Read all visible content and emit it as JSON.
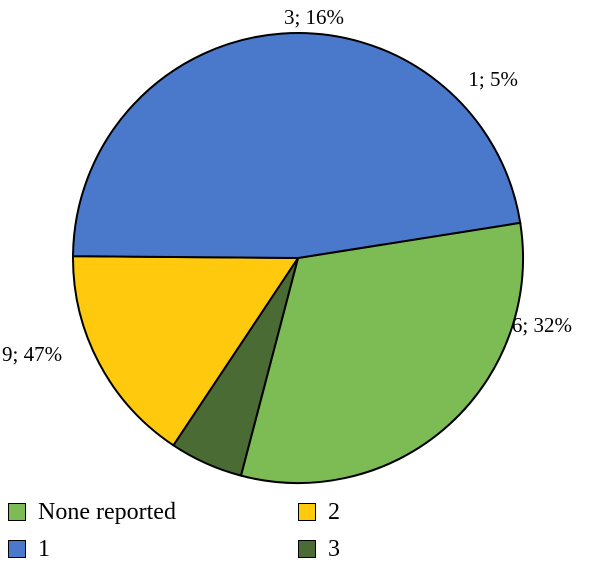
{
  "chart_data": {
    "type": "pie",
    "categories": [
      "None reported",
      "3",
      "2",
      "1"
    ],
    "values": [
      6,
      1,
      3,
      9
    ],
    "percent": [
      32,
      5,
      16,
      47
    ],
    "data_labels": [
      "6; 32%",
      "1; 5%",
      "3; 16%",
      "9; 47%"
    ],
    "colors": [
      "#7dbb55",
      "#4a6b33",
      "#ffc90e",
      "#4a79cc"
    ],
    "title": "",
    "legend_position": "bottom",
    "legend": [
      {
        "label": "None reported",
        "color": "#7dbb55"
      },
      {
        "label": "2",
        "color": "#ffc90e"
      },
      {
        "label": "1",
        "color": "#4a79cc"
      },
      {
        "label": "3",
        "color": "#4a6b33"
      }
    ]
  }
}
